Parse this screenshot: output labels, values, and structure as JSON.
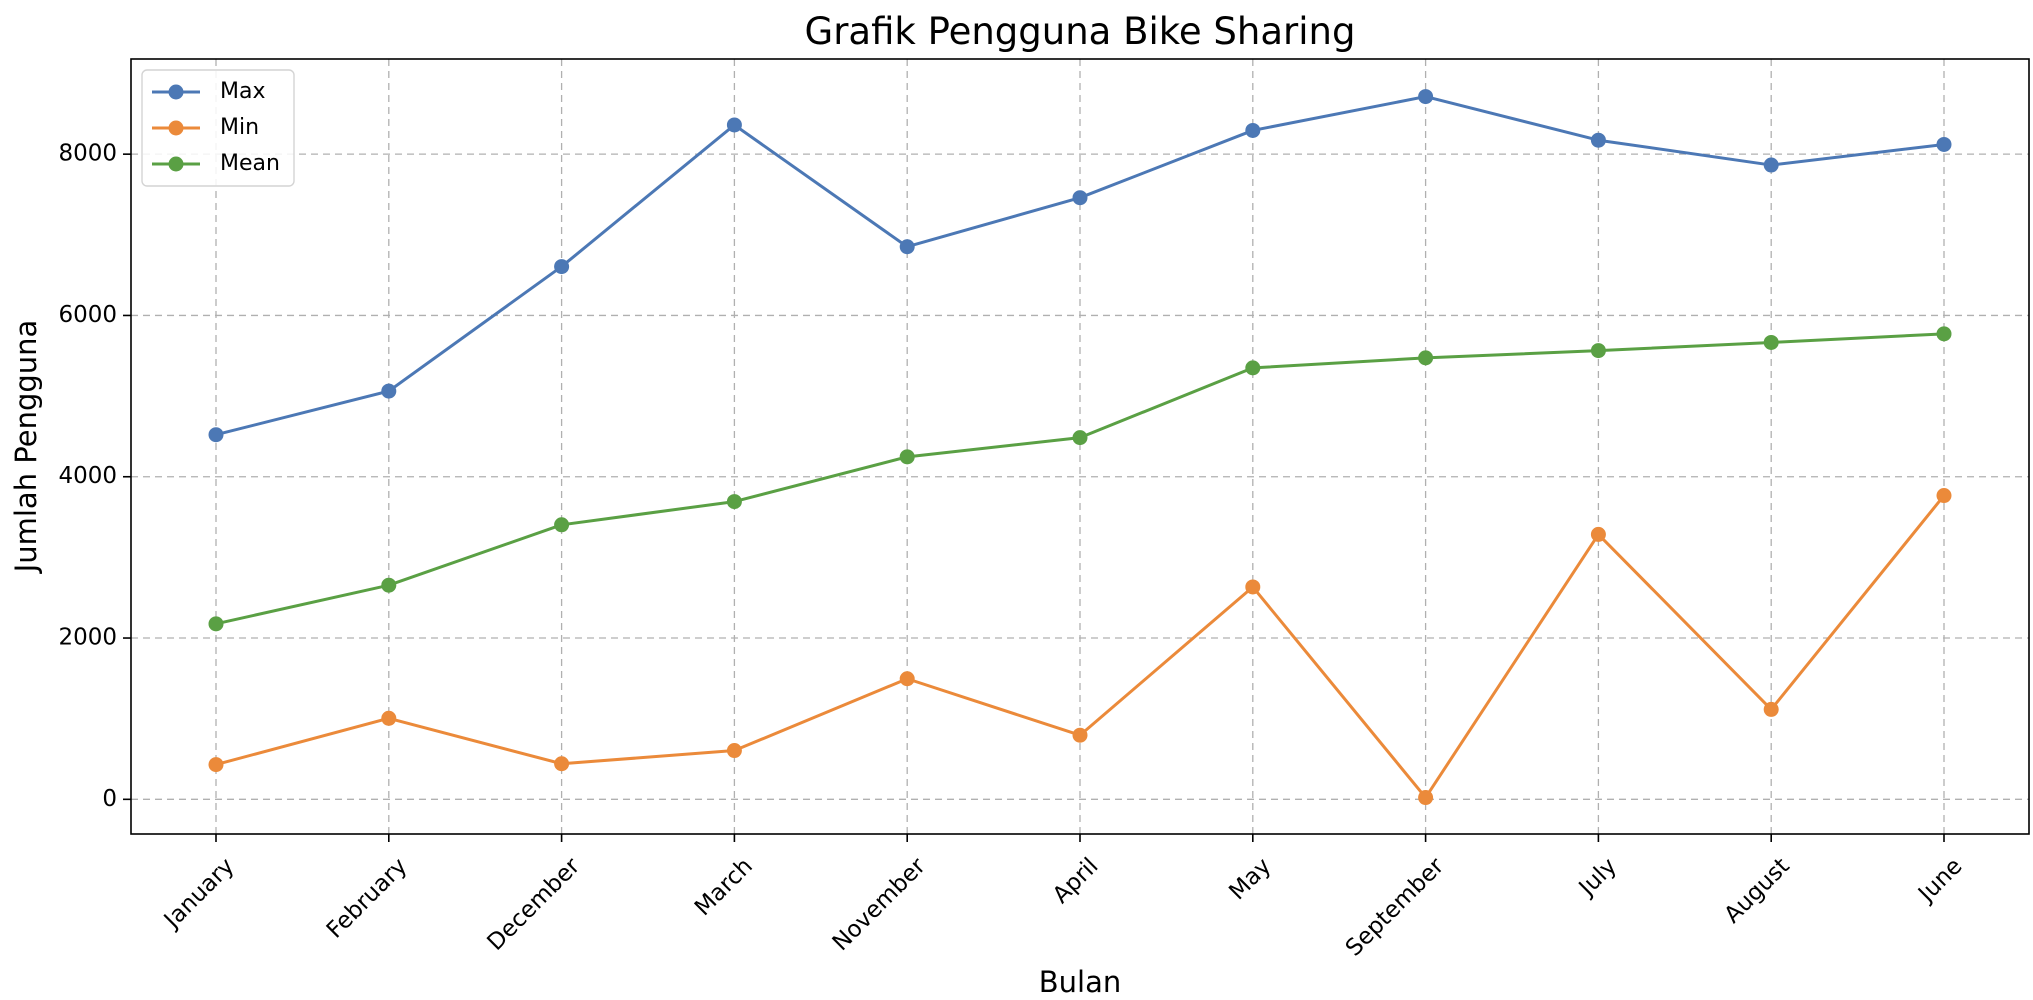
{
  "chart_data": {
    "type": "line",
    "title": "Grafik Pengguna Bike Sharing",
    "xlabel": "Bulan",
    "ylabel": "Jumlah Pengguna",
    "categories": [
      "January",
      "February",
      "December",
      "March",
      "November",
      "April",
      "May",
      "September",
      "July",
      "August",
      "June"
    ],
    "ylim": [
      -430,
      9180
    ],
    "yticks": [
      0,
      2000,
      4000,
      6000,
      8000
    ],
    "ytick_labels": [
      "0",
      "2000",
      "4000",
      "6000",
      "8000"
    ],
    "grid": true,
    "legend_position": "upper-left",
    "series": [
      {
        "name": "Max",
        "color": "#4c78b5",
        "marker": "circle",
        "values": [
          4521,
          5062,
          6606,
          8362,
          6852,
          7460,
          8294,
          8714,
          8173,
          7865,
          8120
        ]
      },
      {
        "name": "Min",
        "color": "#eb8a3a",
        "marker": "circle",
        "values": [
          431,
          1005,
          441,
          605,
          1495,
          795,
          2633,
          22,
          3285,
          1115,
          3767
        ]
      },
      {
        "name": "Mean",
        "color": "#5aa044",
        "marker": "circle",
        "values": [
          2176,
          2655,
          3404,
          3692,
          4247,
          4485,
          5350,
          5474,
          5564,
          5665,
          5772
        ]
      }
    ]
  }
}
